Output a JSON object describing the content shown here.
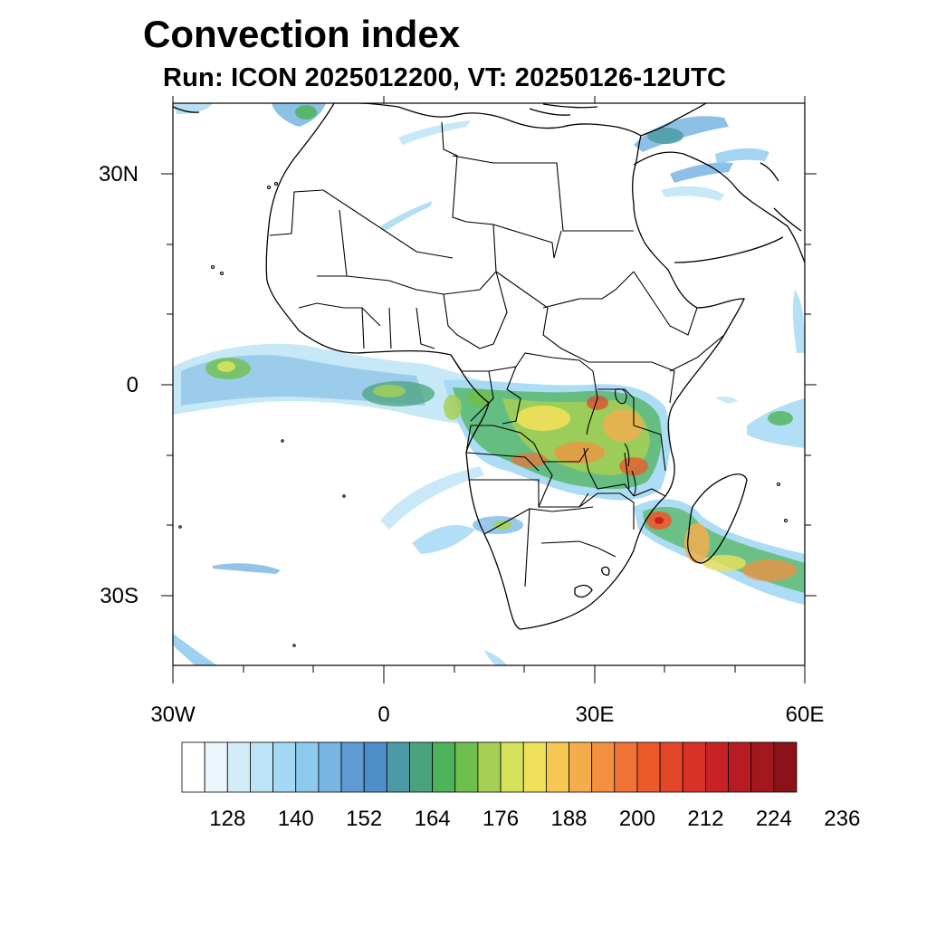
{
  "title": "Convection index",
  "subtitle": "Run: ICON 2025012200,  VT: 20250126-12UTC",
  "axes": {
    "lat_labels": [
      "30N",
      "0",
      "30S"
    ],
    "lon_labels": [
      "30W",
      "0",
      "30E",
      "60E"
    ],
    "lon_range": [
      -30,
      60
    ],
    "lat_range": [
      -40,
      40
    ]
  },
  "colorbar": {
    "colors": [
      "#ffffff",
      "#eaf5fc",
      "#d2ecf8",
      "#bde4f6",
      "#a4d8f4",
      "#8dc9ed",
      "#78b5e2",
      "#5f9ad2",
      "#4d8ec8",
      "#4c9aa6",
      "#49a47e",
      "#4eb35a",
      "#6fbf4e",
      "#a6d055",
      "#d6e25a",
      "#efe15a",
      "#f7c754",
      "#f5ad4c",
      "#f39040",
      "#ef7236",
      "#ec5a2c",
      "#e4462a",
      "#d93229",
      "#c92226",
      "#b71b24",
      "#a3171f",
      "#8c131a"
    ],
    "tick_labels": [
      "128",
      "140",
      "152",
      "164",
      "176",
      "188",
      "200",
      "212",
      "224",
      "236"
    ]
  }
}
